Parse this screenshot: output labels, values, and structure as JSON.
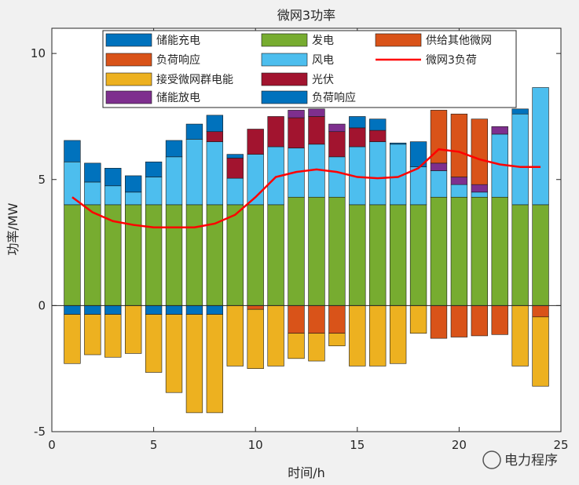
{
  "chart_data": {
    "type": "bar",
    "title": "微网3功率",
    "xlabel": "时间/h",
    "ylabel": "功率/MW",
    "xlim": [
      0,
      25
    ],
    "ylim": [
      -5,
      11
    ],
    "xticks": [
      0,
      5,
      10,
      15,
      20,
      25
    ],
    "yticks": [
      -5,
      0,
      5,
      10
    ],
    "grid": false,
    "legend_position": "top",
    "x": [
      1,
      2,
      3,
      4,
      5,
      6,
      7,
      8,
      9,
      10,
      11,
      12,
      13,
      14,
      15,
      16,
      17,
      18,
      19,
      20,
      21,
      22,
      23,
      24
    ],
    "series": [
      {
        "name": "发电",
        "color": "#77ac30",
        "values": [
          4,
          4,
          4,
          4,
          4,
          4,
          4,
          4,
          4,
          4,
          4,
          4.3,
          4.3,
          4.3,
          4,
          4,
          4,
          4,
          4.3,
          4.3,
          4.3,
          4.3,
          4,
          4
        ]
      },
      {
        "name": "风电",
        "color": "#4dbeee",
        "values": [
          1.7,
          0.9,
          0.75,
          0.5,
          1.1,
          1.9,
          2.6,
          2.5,
          1.05,
          2,
          2.3,
          1.95,
          2.1,
          1.6,
          2.3,
          2.5,
          2.4,
          1.5,
          1.05,
          0.5,
          0.2,
          2.5,
          3.6,
          4.65
        ]
      },
      {
        "name": "光伏",
        "color": "#a2142f",
        "values": [
          0,
          0,
          0,
          0,
          0,
          0,
          0,
          0.4,
          0.8,
          1,
          1.2,
          1.2,
          1.1,
          1,
          0.75,
          0.45,
          0,
          0,
          0,
          0,
          0,
          0,
          0,
          0
        ]
      },
      {
        "name": "储能放电",
        "color": "#7e2f8e",
        "values": [
          0,
          0,
          0,
          0,
          0,
          0,
          0,
          0,
          0,
          0,
          0,
          0.3,
          0.3,
          0.3,
          0,
          0,
          0,
          0,
          0.3,
          0.3,
          0.3,
          0.3,
          0,
          0
        ]
      },
      {
        "name": "负荷响应",
        "color": "#0072bd",
        "values": [
          0.85,
          0.75,
          0.7,
          0.65,
          0.6,
          0.65,
          0.6,
          0.65,
          0.15,
          0,
          0,
          0,
          0,
          0,
          0.45,
          0.45,
          0.05,
          1,
          0,
          0,
          0,
          0,
          0.2,
          0
        ]
      },
      {
        "name": "供给其他微网",
        "color": "#d95319",
        "values": [
          0,
          0,
          0,
          0,
          0,
          0,
          0,
          0,
          0,
          0,
          0,
          0,
          0,
          0,
          0,
          0,
          0,
          0,
          2.1,
          2.5,
          2.6,
          0,
          0,
          0
        ]
      },
      {
        "name": "储能充电",
        "color": "#0072bd",
        "values": [
          -0.35,
          -0.35,
          -0.35,
          0,
          -0.35,
          -0.35,
          -0.35,
          -0.35,
          0,
          0,
          0,
          0,
          0,
          0,
          0,
          0,
          0,
          0,
          0,
          0,
          0,
          0,
          0,
          0
        ]
      },
      {
        "name": "负荷响应",
        "color": "#d95319",
        "values": [
          0,
          0,
          0,
          0,
          0,
          0,
          0,
          0,
          0,
          -0.15,
          0,
          -1.1,
          -1.1,
          -1.1,
          0,
          0,
          0,
          0,
          -1.3,
          -1.25,
          -1.2,
          -1.15,
          0,
          -0.45
        ]
      },
      {
        "name": "接受微网群电能",
        "color": "#edb120",
        "values": [
          -1.95,
          -1.6,
          -1.7,
          -1.9,
          -2.3,
          -3.1,
          -3.9,
          -3.9,
          -2.4,
          -2.35,
          -2.4,
          -1,
          -1.1,
          -0.5,
          -2.4,
          -2.4,
          -2.3,
          -1.1,
          0,
          0,
          0,
          0,
          -2.4,
          -2.75
        ]
      },
      {
        "name": "微网3负荷",
        "color": "#ff0000",
        "type": "line",
        "values": [
          4.3,
          3.7,
          3.35,
          3.2,
          3.1,
          3.1,
          3.1,
          3.25,
          3.6,
          4.3,
          5.1,
          5.3,
          5.4,
          5.3,
          5.1,
          5.05,
          5.1,
          5.45,
          6.2,
          6.1,
          5.8,
          5.6,
          5.5,
          5.5
        ]
      }
    ],
    "legend": [
      {
        "label": "储能充电",
        "color": "#0072bd",
        "kind": "patch"
      },
      {
        "label": "发电",
        "color": "#77ac30",
        "kind": "patch"
      },
      {
        "label": "供给其他微网",
        "color": "#d95319",
        "kind": "patch"
      },
      {
        "label": "负荷响应",
        "color": "#d95319",
        "kind": "patch"
      },
      {
        "label": "风电",
        "color": "#4dbeee",
        "kind": "patch"
      },
      {
        "label": "微网3负荷",
        "color": "#ff0000",
        "kind": "line"
      },
      {
        "label": "接受微网群电能",
        "color": "#edb120",
        "kind": "patch"
      },
      {
        "label": "光伏",
        "color": "#a2142f",
        "kind": "patch"
      },
      {
        "label": "",
        "color": "",
        "kind": "none"
      },
      {
        "label": "储能放电",
        "color": "#7e2f8e",
        "kind": "patch"
      },
      {
        "label": "负荷响应",
        "color": "#0072bd",
        "kind": "patch"
      },
      {
        "label": "",
        "color": "",
        "kind": "none"
      }
    ]
  },
  "watermark": "电力程序"
}
